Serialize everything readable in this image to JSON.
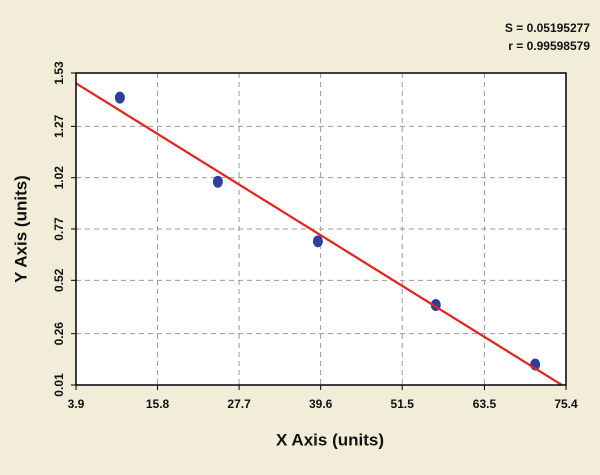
{
  "chart_data": {
    "type": "scatter",
    "annotations": [
      "S = 0.05195277",
      "r = 0.99598579"
    ],
    "x_label": "X Axis (units)",
    "y_label": "Y Axis (units)",
    "series": [
      {
        "type": "scatter",
        "color": "#2b3f9f",
        "x": [
          10.3,
          24.6,
          39.2,
          56.4,
          70.9
        ],
        "values": [
          1.41,
          1.0,
          0.71,
          0.4,
          0.11
        ]
      },
      {
        "type": "line",
        "color": "#e3241c",
        "x": [
          3.9,
          74.8
        ],
        "values": [
          1.48,
          0.01
        ]
      }
    ],
    "xlim": [
      3.9,
      75.4
    ],
    "xticks": [
      3.9,
      15.8,
      27.7,
      39.6,
      51.5,
      63.5,
      75.4
    ],
    "ylim": [
      0.01,
      1.53
    ],
    "yticks": [
      0.01,
      0.26,
      0.52,
      0.77,
      1.02,
      1.27,
      1.53
    ],
    "grid": true
  }
}
